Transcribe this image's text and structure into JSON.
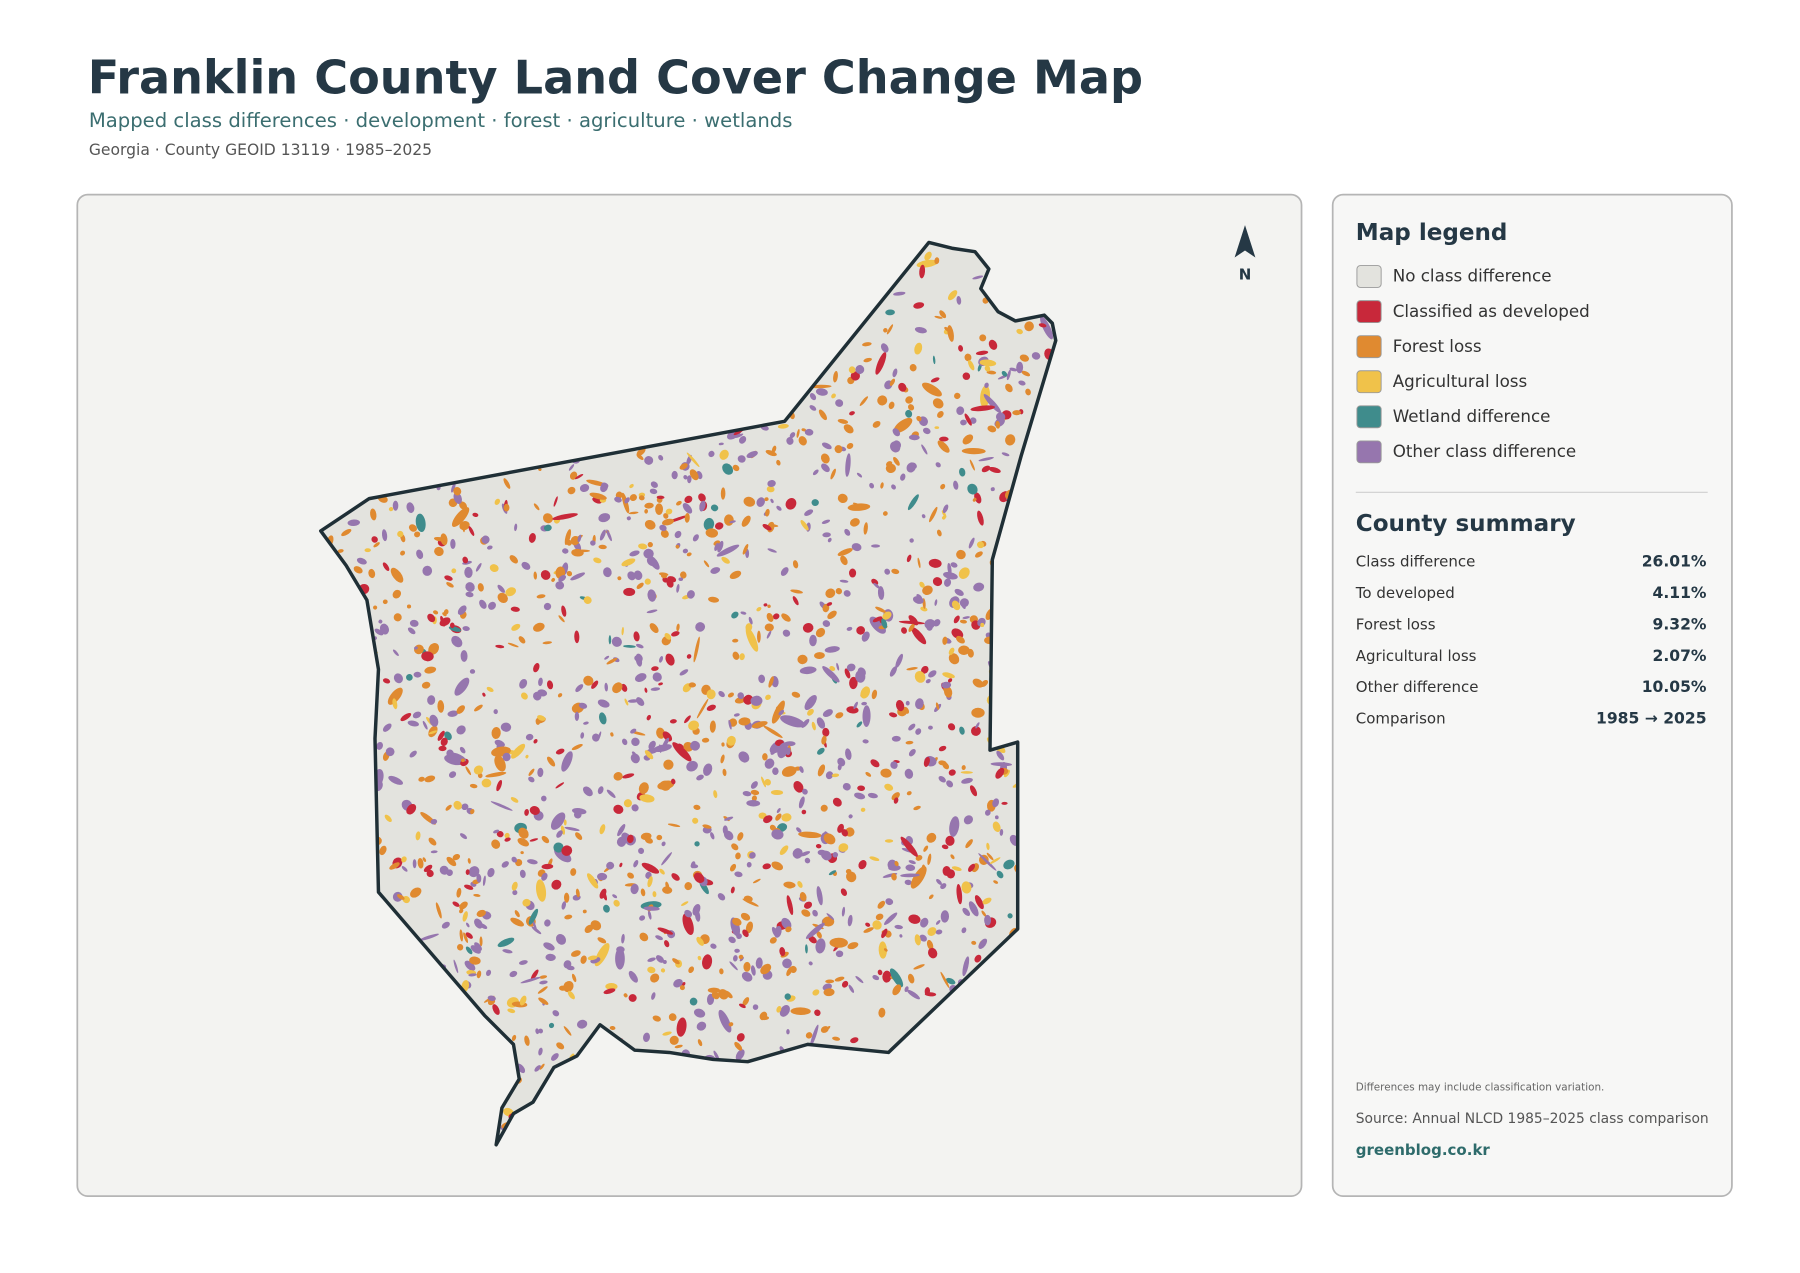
{
  "header": {
    "title": "Franklin County Land Cover Change Map",
    "subtitle": "Mapped class differences · development · forest · agriculture · wetlands",
    "meta": "Georgia · County GEOID 13119 · 1985–2025"
  },
  "map": {
    "north": "N"
  },
  "legend": {
    "title": "Map legend",
    "items": [
      {
        "label": "No class difference",
        "color": "#e3e3de"
      },
      {
        "label": "Classified as developed",
        "color": "#c8283a"
      },
      {
        "label": "Forest loss",
        "color": "#e08a30"
      },
      {
        "label": "Agricultural loss",
        "color": "#f0c24a"
      },
      {
        "label": "Wetland difference",
        "color": "#3f8c8c"
      },
      {
        "label": "Other class difference",
        "color": "#9676ae"
      }
    ]
  },
  "summary": {
    "title": "County summary",
    "rows": [
      {
        "label": "Class difference",
        "value": "26.01%"
      },
      {
        "label": "To developed",
        "value": "4.11%"
      },
      {
        "label": "Forest loss",
        "value": "9.32%"
      },
      {
        "label": "Agricultural loss",
        "value": "2.07%"
      },
      {
        "label": "Other difference",
        "value": "10.05%"
      },
      {
        "label": "Comparison",
        "value": "1985 → 2025"
      }
    ]
  },
  "notes": {
    "caveat": "Differences may include classification variation.",
    "source": "Source: Annual NLCD 1985–2025 class comparison",
    "site": "greenblog.co.kr"
  }
}
